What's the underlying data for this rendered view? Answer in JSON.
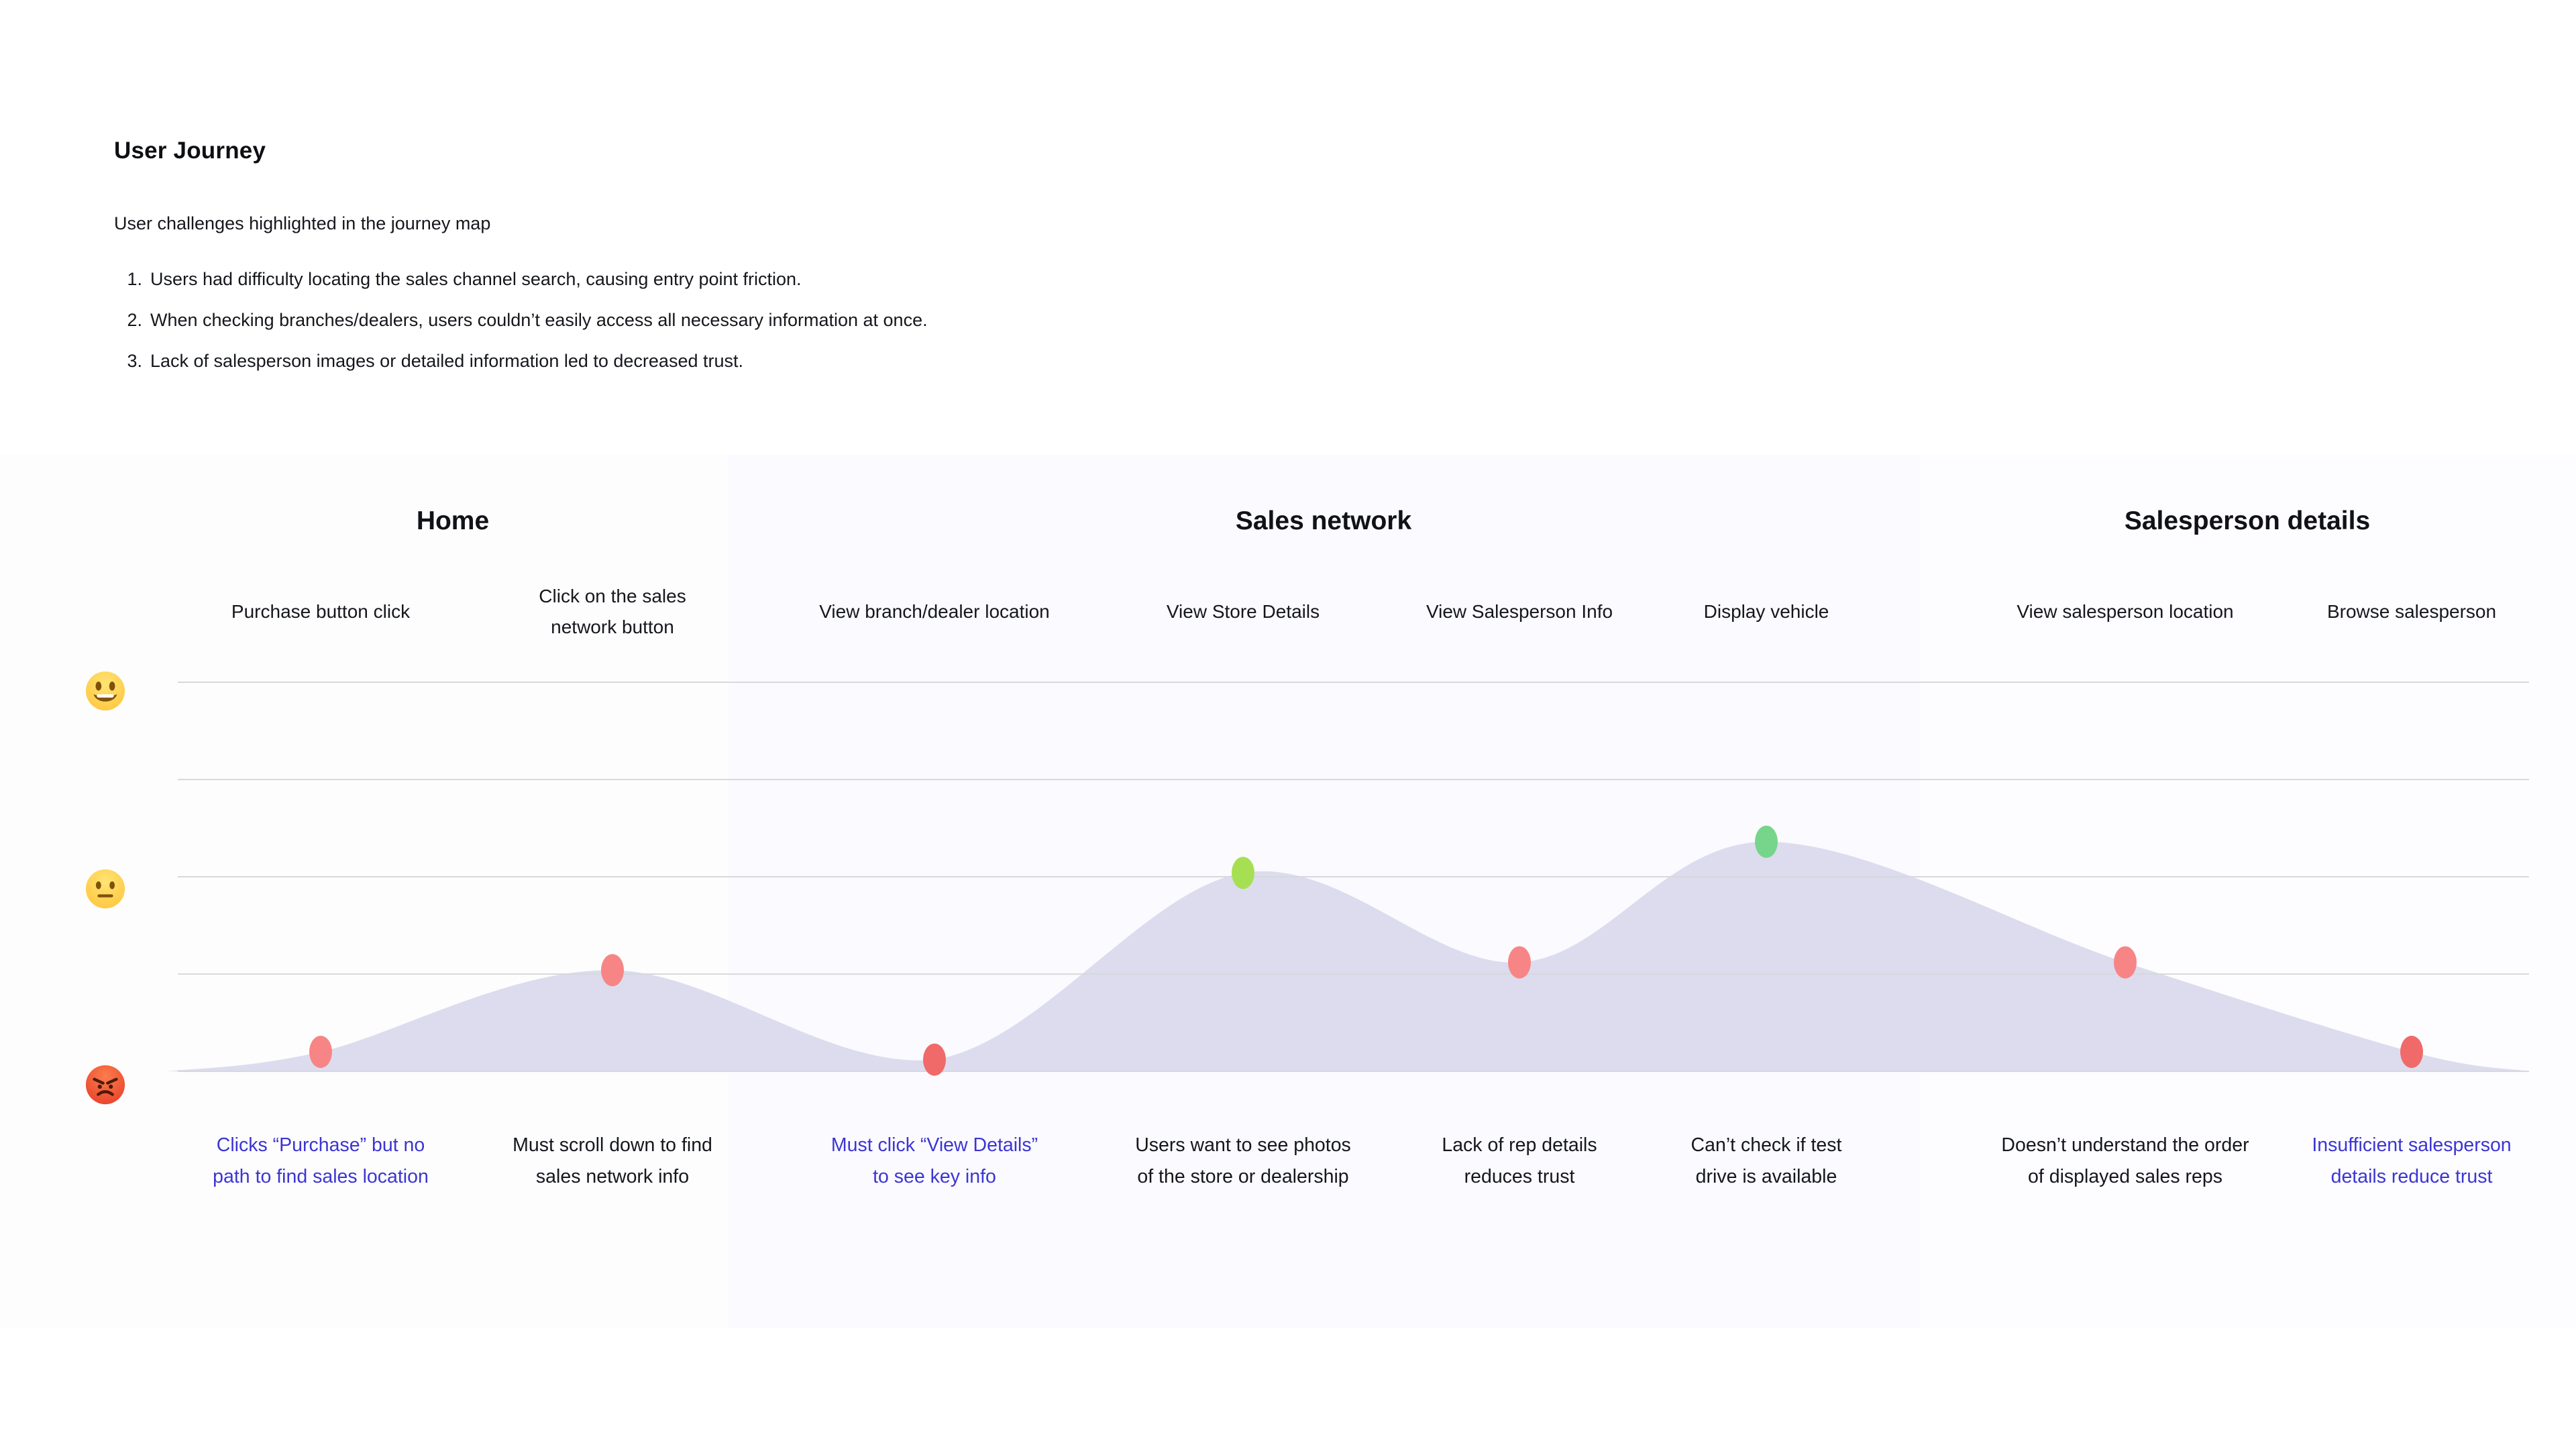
{
  "header": {
    "title": "User Journey",
    "subtitle": "User challenges highlighted in the journey map",
    "challenges": [
      {
        "num": "1.",
        "text": "Users had difficulty locating the sales channel search, causing entry point friction."
      },
      {
        "num": "2.",
        "text": "When checking branches/dealers, users couldn’t easily access all necessary information at once."
      },
      {
        "num": "3.",
        "text": "Lack of salesperson images or detailed information led to decreased trust."
      }
    ]
  },
  "chart_data": {
    "type": "area",
    "title": "User Journey",
    "legend": "none",
    "grid": "horizontal",
    "y_axis": {
      "kind": "sentiment",
      "min": 0,
      "max": 100,
      "gridlines": 5,
      "levels": [
        {
          "icon": "grinning-face-icon",
          "sentiment": "positive",
          "value": 100
        },
        {
          "icon": "neutral-face-icon",
          "sentiment": "neutral",
          "value": 50
        },
        {
          "icon": "angry-face-icon",
          "sentiment": "negative",
          "value": 0
        }
      ]
    },
    "phases": [
      {
        "label": "Home",
        "step_indexes": [
          0,
          1
        ],
        "background": "#fdfdfe"
      },
      {
        "label": "Sales network",
        "step_indexes": [
          2,
          3,
          4,
          5
        ],
        "background": "#fafaff"
      },
      {
        "label": "Salesperson details",
        "step_indexes": [
          6,
          7
        ],
        "background": "#fdfdff"
      }
    ],
    "steps": [
      {
        "label": "Purchase button click",
        "label_lines": [
          "Purchase button click"
        ],
        "sentiment": 5,
        "dot_color": "#f78585",
        "caption": "Clicks “Purchase” but no path to find sales location",
        "caption_lines": [
          "Clicks “Purchase” but no",
          "path to find sales location"
        ],
        "caption_color": "#3c35d2"
      },
      {
        "label": "Click on the sales network button",
        "label_lines": [
          "Click on the sales",
          "network button"
        ],
        "sentiment": 26,
        "dot_color": "#f78585",
        "caption": "Must scroll down to find sales network info",
        "caption_lines": [
          "Must scroll down to find",
          "sales network info"
        ],
        "caption_color": "#15171c"
      },
      {
        "label": "View branch/dealer location",
        "label_lines": [
          "View branch/dealer location"
        ],
        "sentiment": 3,
        "dot_color": "#f06a6a",
        "caption": "Must click “View Details” to see key info",
        "caption_lines": [
          "Must click “View Details”",
          "to see key info"
        ],
        "caption_color": "#3c35d2"
      },
      {
        "label": "View Store Details",
        "label_lines": [
          "View Store Details"
        ],
        "sentiment": 51,
        "dot_color": "#a6e052",
        "caption": "Users want to see photos of the store or dealership",
        "caption_lines": [
          "Users want to see photos",
          "of the store or dealership"
        ],
        "caption_color": "#15171c"
      },
      {
        "label": "View Salesperson Info",
        "label_lines": [
          "View Salesperson Info"
        ],
        "sentiment": 28,
        "dot_color": "#f78585",
        "caption": "Lack of rep details reduces trust",
        "caption_lines": [
          "Lack of rep details",
          "reduces trust"
        ],
        "caption_color": "#15171c"
      },
      {
        "label": "Display vehicle",
        "label_lines": [
          "Display vehicle"
        ],
        "sentiment": 59,
        "dot_color": "#77d58b",
        "caption": "Can’t check if test drive is available",
        "caption_lines": [
          "Can’t check if test",
          "drive is available"
        ],
        "caption_color": "#15171c"
      },
      {
        "label": "View salesperson location",
        "label_lines": [
          "View salesperson location"
        ],
        "sentiment": 28,
        "dot_color": "#f78585",
        "caption": "Doesn’t understand the order of displayed sales reps",
        "caption_lines": [
          "Doesn’t understand the order",
          "of displayed sales reps"
        ],
        "caption_color": "#15171c"
      },
      {
        "label": "Browse salesperson",
        "label_lines": [
          "Browse salesperson"
        ],
        "sentiment": 5,
        "dot_color": "#f06a6a",
        "caption": "Insufficient salesperson details reduce trust",
        "caption_lines": [
          "Insufficient salesperson",
          "details reduce trust"
        ],
        "caption_color": "#3c35d2"
      }
    ],
    "style": {
      "area_fill": "#dcdcee",
      "gridline_color": "#d8d8dd",
      "accent_blue": "#3c35d2"
    }
  }
}
